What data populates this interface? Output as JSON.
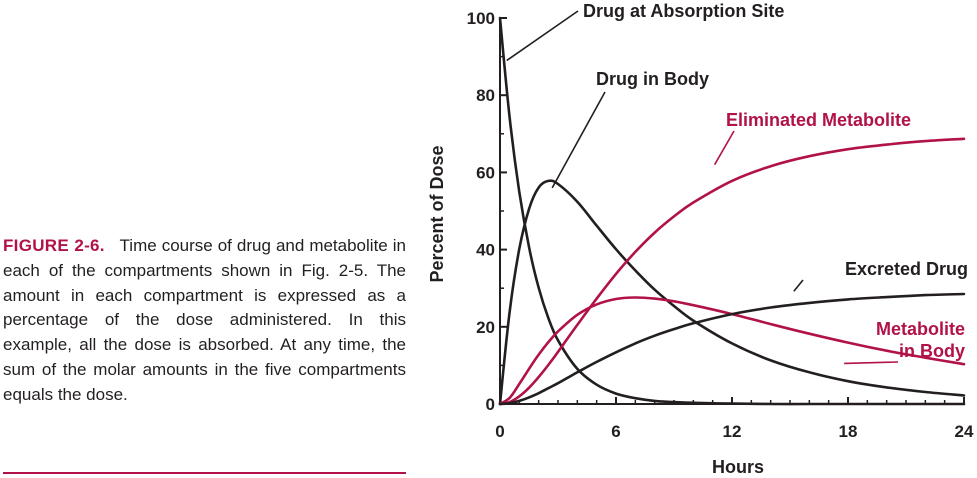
{
  "caption": {
    "label": "FIGURE 2-6.",
    "text": "Time course of drug and metabolite in each of the compartments shown in Fig. 2-5. The amount in each compartment is expressed as a percentage of the dose administered. In this example, all the dose is absorbed. At any time, the sum of the molar amounts in the five compartments equals the dose."
  },
  "chart_data": {
    "type": "line",
    "xlabel": "Hours",
    "ylabel": "Percent of Dose",
    "xlim": [
      0,
      24
    ],
    "ylim": [
      0,
      100
    ],
    "xticks": [
      0,
      6,
      12,
      18,
      24
    ],
    "yticks": [
      0,
      20,
      40,
      60,
      80,
      100
    ],
    "grid": false,
    "legend": "none",
    "x": [
      0,
      0.5,
      1,
      1.5,
      2,
      2.5,
      3,
      4,
      5,
      6,
      7,
      8,
      9,
      10,
      12,
      14,
      16,
      18,
      20,
      22,
      24
    ],
    "series": [
      {
        "name": "Drug at Absorption Site",
        "color": "#231f20",
        "values": [
          100,
          74.1,
          54.9,
          40.7,
          30.1,
          22.3,
          16.5,
          9.1,
          5.0,
          2.7,
          1.5,
          0.8,
          0.5,
          0.3,
          0.1,
          0,
          0,
          0,
          0,
          0,
          0
        ],
        "label_anchor": [
          0.35,
          89
        ]
      },
      {
        "name": "Drug in Body",
        "color": "#231f20",
        "values": [
          0,
          24.0,
          40.2,
          50.5,
          56.1,
          57.8,
          57.0,
          52.4,
          46.2,
          40.1,
          34.6,
          29.6,
          25.4,
          21.6,
          15.7,
          11.3,
          8.2,
          5.9,
          4.3,
          3.1,
          2.2
        ],
        "label_anchor": [
          2.7,
          56
        ]
      },
      {
        "name": "Eliminated Metabolite",
        "color": "#b1124a",
        "values": [
          0,
          0.5,
          2.0,
          4.2,
          7.0,
          10.1,
          13.5,
          20.5,
          27.3,
          33.7,
          39.4,
          44.4,
          48.6,
          52.2,
          57.8,
          61.6,
          64.2,
          66.0,
          67.2,
          68.1,
          68.7
        ],
        "label_anchor": [
          11.1,
          62
        ]
      },
      {
        "name": "Metabolite\nin Body",
        "color": "#b1124a",
        "values": [
          0,
          1.6,
          5.2,
          9.1,
          12.8,
          16.0,
          18.8,
          23.1,
          25.8,
          27.2,
          27.6,
          27.3,
          26.6,
          25.6,
          23.3,
          20.7,
          18.2,
          15.9,
          13.8,
          12.0,
          10.3
        ],
        "label_anchor": [
          17.8,
          10.5
        ]
      },
      {
        "name": "Excreted Drug",
        "color": "#231f20",
        "values": [
          0,
          0.2,
          0.8,
          1.7,
          2.8,
          4.1,
          5.4,
          8.2,
          10.9,
          13.4,
          15.7,
          17.7,
          19.4,
          20.9,
          23.3,
          25.0,
          26.2,
          27.1,
          27.7,
          28.2,
          28.5
        ],
        "label_anchor": [
          15.2,
          29.2
        ]
      }
    ]
  }
}
